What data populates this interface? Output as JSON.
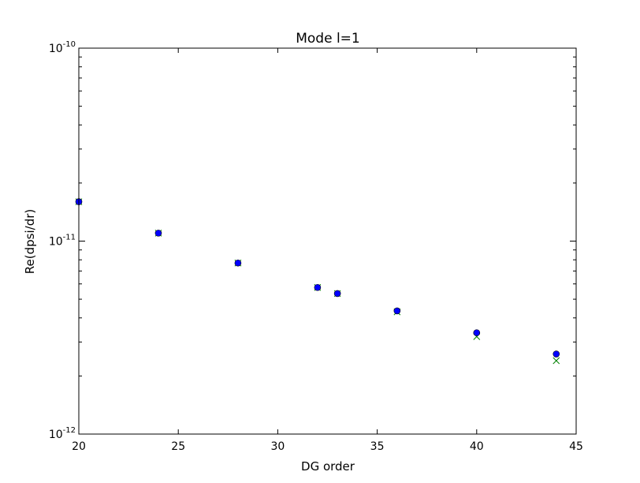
{
  "chart_data": {
    "type": "scatter",
    "title": "Mode l=1",
    "xlabel": "DG order",
    "ylabel": "Re(dpsi/dr)",
    "xlim": [
      20,
      45
    ],
    "ylim": [
      1e-12,
      1e-10
    ],
    "yscale": "log",
    "grid": false,
    "xticks": [
      20,
      25,
      30,
      35,
      40,
      45
    ],
    "xtick_labels": [
      "20",
      "25",
      "30",
      "35",
      "40",
      "45"
    ],
    "yticks": [
      {
        "value": 1e-10,
        "base": "10",
        "exp": "-10"
      },
      {
        "value": 1e-11,
        "base": "10",
        "exp": "-11"
      },
      {
        "value": 1e-12,
        "base": "10",
        "exp": "-12"
      }
    ],
    "series": [
      {
        "marker": "circle",
        "color": "#0000ff",
        "x": [
          20,
          24,
          28,
          32,
          33,
          36,
          40,
          44
        ],
        "y": [
          1.6e-11,
          1.1e-11,
          7.7e-12,
          5.75e-12,
          5.35e-12,
          4.35e-12,
          3.35e-12,
          2.6e-12
        ]
      },
      {
        "marker": "x",
        "color": "#008000",
        "x": [
          20,
          24,
          28,
          32,
          33,
          36,
          40,
          44
        ],
        "y": [
          1.6e-11,
          1.1e-11,
          7.7e-12,
          5.75e-12,
          5.35e-12,
          4.3e-12,
          3.2e-12,
          2.4e-12
        ]
      }
    ]
  }
}
